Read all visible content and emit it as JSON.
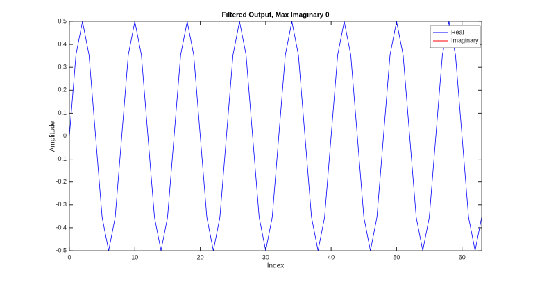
{
  "chart_data": {
    "type": "line",
    "title": "Filtered Output, Max Imaginary 0",
    "x_label": "Index",
    "y_label": "Amplitude",
    "x": [
      0,
      1,
      2,
      3,
      4,
      5,
      6,
      7,
      8,
      9,
      10,
      11,
      12,
      13,
      14,
      15,
      16,
      17,
      18,
      19,
      20,
      21,
      22,
      23,
      24,
      25,
      26,
      27,
      28,
      29,
      30,
      31,
      32,
      33,
      34,
      35,
      36,
      37,
      38,
      39,
      40,
      41,
      42,
      43,
      44,
      45,
      46,
      47,
      48,
      49,
      50,
      51,
      52,
      53,
      54,
      55,
      56,
      57,
      58,
      59,
      60,
      61,
      62,
      63
    ],
    "series": [
      {
        "name": "Real",
        "color": "#0000ff",
        "values": [
          0,
          0.354,
          0.5,
          0.354,
          0,
          -0.354,
          -0.5,
          -0.354,
          0,
          0.354,
          0.5,
          0.354,
          0,
          -0.354,
          -0.5,
          -0.354,
          0,
          0.354,
          0.5,
          0.354,
          0,
          -0.354,
          -0.5,
          -0.354,
          0,
          0.354,
          0.5,
          0.354,
          0,
          -0.354,
          -0.5,
          -0.354,
          0,
          0.354,
          0.5,
          0.354,
          0,
          -0.354,
          -0.5,
          -0.354,
          0,
          0.354,
          0.5,
          0.354,
          0,
          -0.354,
          -0.5,
          -0.354,
          0,
          0.354,
          0.5,
          0.354,
          0,
          -0.354,
          -0.5,
          -0.354,
          0,
          0.354,
          0.5,
          0.354,
          0,
          -0.354,
          -0.5,
          -0.354
        ]
      },
      {
        "name": "Imaginary",
        "color": "#ff0000",
        "values": [
          0,
          0,
          0,
          0,
          0,
          0,
          0,
          0,
          0,
          0,
          0,
          0,
          0,
          0,
          0,
          0,
          0,
          0,
          0,
          0,
          0,
          0,
          0,
          0,
          0,
          0,
          0,
          0,
          0,
          0,
          0,
          0,
          0,
          0,
          0,
          0,
          0,
          0,
          0,
          0,
          0,
          0,
          0,
          0,
          0,
          0,
          0,
          0,
          0,
          0,
          0,
          0,
          0,
          0,
          0,
          0,
          0,
          0,
          0,
          0,
          0,
          0,
          0,
          0
        ]
      }
    ],
    "xlim": [
      0,
      63
    ],
    "xticks": [
      0,
      10,
      20,
      30,
      40,
      50,
      60
    ],
    "ylim": [
      -0.5,
      0.5
    ],
    "yticks": [
      -0.5,
      -0.4,
      -0.3,
      -0.2,
      -0.1,
      0,
      0.1,
      0.2,
      0.3,
      0.4,
      0.5
    ],
    "legend": "top-right"
  }
}
